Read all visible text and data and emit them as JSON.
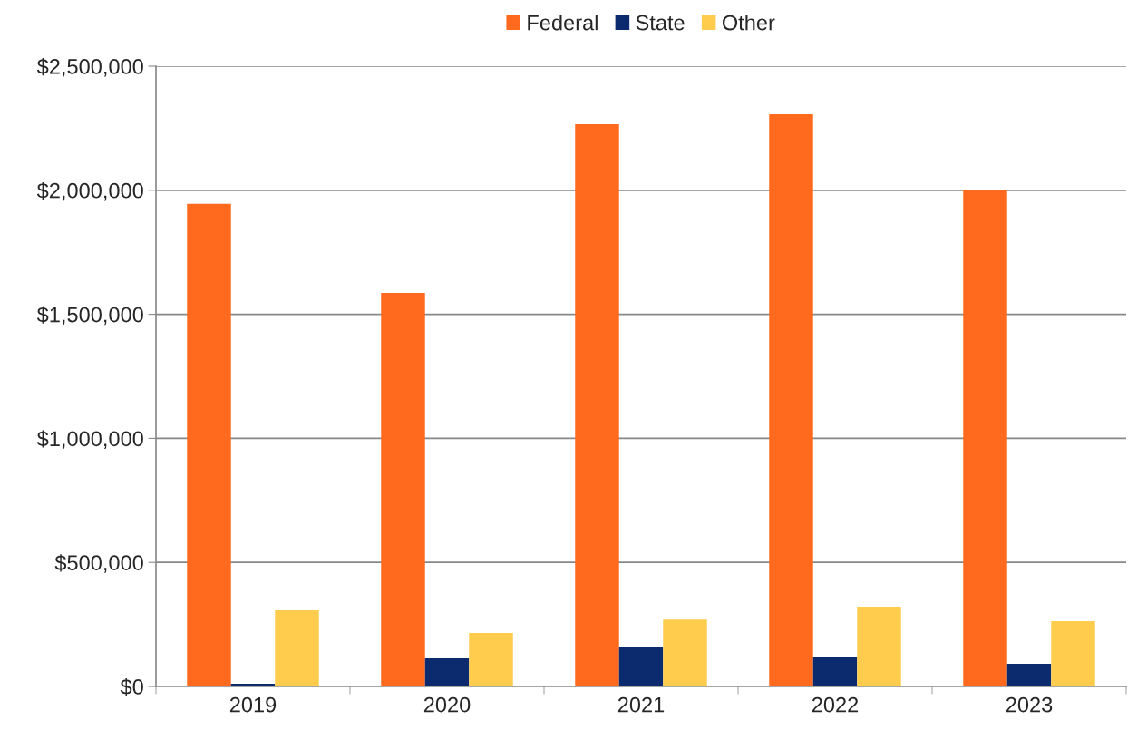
{
  "chart_data": {
    "type": "bar",
    "categories": [
      "2019",
      "2020",
      "2021",
      "2022",
      "2023"
    ],
    "series": [
      {
        "name": "Federal",
        "color": "#ff6a1f",
        "values": [
          1945000,
          1586000,
          2266000,
          2306000,
          2003000
        ]
      },
      {
        "name": "State",
        "color": "#0c2a6e",
        "values": [
          11000,
          113000,
          157000,
          121000,
          91000
        ]
      },
      {
        "name": "Other",
        "color": "#ffcc4d",
        "values": [
          307000,
          216000,
          270000,
          322000,
          263000
        ]
      }
    ],
    "ylim": [
      0,
      2500000
    ],
    "yticks": [
      {
        "value": 0,
        "label": "$0"
      },
      {
        "value": 500000,
        "label": "$500,000"
      },
      {
        "value": 1000000,
        "label": "$1,000,000"
      },
      {
        "value": 1500000,
        "label": "$1,500,000"
      },
      {
        "value": 2000000,
        "label": "$2,000,000"
      },
      {
        "value": 2500000,
        "label": "$2,500,000"
      }
    ],
    "grid": "y",
    "legend": "top"
  }
}
